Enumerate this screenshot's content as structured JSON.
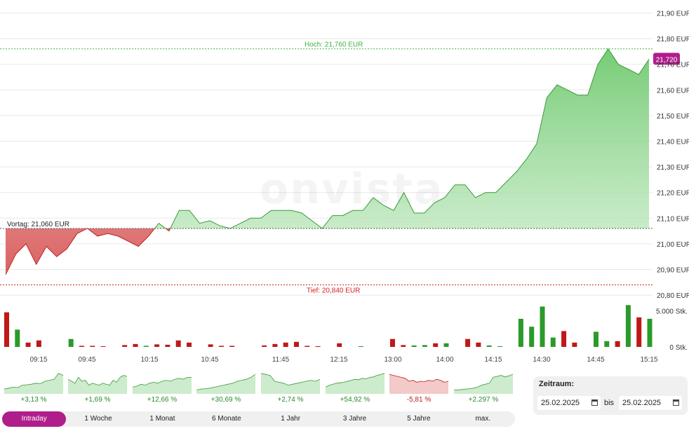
{
  "chart_data": {
    "type": "area",
    "watermark": "onvista",
    "currency_unit": "EUR",
    "y_ticks": [
      "21,90 EUR",
      "21,80 EUR",
      "21,70 EUR",
      "21,60 EUR",
      "21,50 EUR",
      "21,40 EUR",
      "21,30 EUR",
      "21,20 EUR",
      "21,10 EUR",
      "21,00 EUR",
      "20,90 EUR",
      "20,80 EUR"
    ],
    "y_tick_values": [
      21.9,
      21.8,
      21.7,
      21.6,
      21.5,
      21.4,
      21.3,
      21.2,
      21.1,
      21.0,
      20.9,
      20.8
    ],
    "ylim": [
      20.8,
      21.95
    ],
    "x_ticks": [
      "09:15",
      "09:45",
      "10:15",
      "10:45",
      "11:45",
      "12:15",
      "13:00",
      "14:00",
      "14:15",
      "14:30",
      "14:45",
      "15:15"
    ],
    "previous_close": {
      "label": "Vortag: 21,060 EUR",
      "value": 21.06
    },
    "high": {
      "label": "Hoch: 21,760 EUR",
      "value": 21.76
    },
    "low": {
      "label": "Tief: 20,840 EUR",
      "value": 20.84
    },
    "last_price_label": "21,720",
    "last_price": 21.72,
    "prices": [
      20.88,
      20.96,
      21.0,
      20.92,
      20.99,
      20.95,
      20.98,
      21.04,
      21.06,
      21.03,
      21.04,
      21.03,
      21.01,
      20.99,
      21.03,
      21.08,
      21.05,
      21.13,
      21.13,
      21.08,
      21.09,
      21.07,
      21.06,
      21.08,
      21.1,
      21.1,
      21.13,
      21.13,
      21.13,
      21.12,
      21.09,
      21.06,
      21.11,
      21.11,
      21.13,
      21.13,
      21.18,
      21.15,
      21.13,
      21.2,
      21.12,
      21.12,
      21.16,
      21.18,
      21.23,
      21.23,
      21.18,
      21.2,
      21.2,
      21.24,
      21.28,
      21.33,
      21.39,
      21.57,
      21.62,
      21.6,
      21.58,
      21.58,
      21.7,
      21.76,
      21.7,
      21.68,
      21.66,
      21.72
    ],
    "volume_ticks": [
      "5.000 Stk.",
      "0 Stk."
    ],
    "volume_tick_values": [
      5000,
      0
    ],
    "volume_max": 7000,
    "volume_colors": {
      "up": "#2a9a2a",
      "down": "#c01818"
    },
    "volume": [
      {
        "x": 9.5,
        "v": 4800,
        "up": false
      },
      {
        "x": 24.8,
        "v": 2400,
        "up": true
      },
      {
        "x": 40.1,
        "v": 600,
        "up": false
      },
      {
        "x": 55.4,
        "v": 900,
        "up": false
      },
      {
        "x": 101.2,
        "v": 1100,
        "up": true
      },
      {
        "x": 116.5,
        "v": 150,
        "up": false
      },
      {
        "x": 131.8,
        "v": 150,
        "up": false
      },
      {
        "x": 147.1,
        "v": 100,
        "up": false
      },
      {
        "x": 177.7,
        "v": 250,
        "up": false
      },
      {
        "x": 193.0,
        "v": 400,
        "up": false
      },
      {
        "x": 208.3,
        "v": 150,
        "up": true
      },
      {
        "x": 223.6,
        "v": 350,
        "up": false
      },
      {
        "x": 238.9,
        "v": 300,
        "up": false
      },
      {
        "x": 254.2,
        "v": 900,
        "up": false
      },
      {
        "x": 269.5,
        "v": 600,
        "up": false
      },
      {
        "x": 300.1,
        "v": 350,
        "up": false
      },
      {
        "x": 315.4,
        "v": 150,
        "up": false
      },
      {
        "x": 330.7,
        "v": 150,
        "up": false
      },
      {
        "x": 376.6,
        "v": 200,
        "up": false
      },
      {
        "x": 391.9,
        "v": 400,
        "up": false
      },
      {
        "x": 407.2,
        "v": 600,
        "up": false
      },
      {
        "x": 422.5,
        "v": 700,
        "up": false
      },
      {
        "x": 437.8,
        "v": 150,
        "up": false
      },
      {
        "x": 453.1,
        "v": 100,
        "up": false
      },
      {
        "x": 483.7,
        "v": 500,
        "up": false
      },
      {
        "x": 514.3,
        "v": 100,
        "up": true
      },
      {
        "x": 559.5,
        "v": 1100,
        "up": false
      },
      {
        "x": 574.8,
        "v": 250,
        "up": false
      },
      {
        "x": 590.1,
        "v": 200,
        "up": true
      },
      {
        "x": 605.4,
        "v": 250,
        "up": true
      },
      {
        "x": 620.7,
        "v": 500,
        "up": false
      },
      {
        "x": 636.0,
        "v": 500,
        "up": true
      },
      {
        "x": 666.6,
        "v": 1100,
        "up": false
      },
      {
        "x": 681.9,
        "v": 600,
        "up": false
      },
      {
        "x": 697.2,
        "v": 200,
        "up": true
      },
      {
        "x": 712.5,
        "v": 100,
        "up": true
      },
      {
        "x": 742.4,
        "v": 3900,
        "up": true
      },
      {
        "x": 757.7,
        "v": 2800,
        "up": true
      },
      {
        "x": 773.0,
        "v": 5600,
        "up": true
      },
      {
        "x": 788.3,
        "v": 1300,
        "up": true
      },
      {
        "x": 803.6,
        "v": 2200,
        "up": false
      },
      {
        "x": 818.9,
        "v": 600,
        "up": false
      },
      {
        "x": 849.5,
        "v": 2100,
        "up": true
      },
      {
        "x": 864.8,
        "v": 800,
        "up": true
      },
      {
        "x": 880.1,
        "v": 800,
        "up": false
      },
      {
        "x": 895.4,
        "v": 5800,
        "up": true
      },
      {
        "x": 910.7,
        "v": 4100,
        "up": false
      },
      {
        "x": 926.0,
        "v": 3900,
        "up": true
      }
    ]
  },
  "performance": [
    {
      "label": "+3,13 %",
      "up": true,
      "series": [
        0.1,
        0.15,
        0.2,
        0.18,
        0.3,
        0.32,
        0.35,
        0.4,
        0.38,
        0.5,
        0.55,
        0.6,
        0.9,
        0.8
      ]
    },
    {
      "label": "+1,69 %",
      "up": true,
      "series": [
        0.6,
        0.5,
        0.4,
        0.7,
        0.5,
        0.55,
        0.3,
        0.4,
        0.35,
        0.3,
        0.4,
        0.35,
        0.3,
        0.55,
        0.45,
        0.7,
        0.8,
        0.75
      ]
    },
    {
      "label": "+12,66 %",
      "up": true,
      "series": [
        0.2,
        0.25,
        0.35,
        0.3,
        0.4,
        0.45,
        0.4,
        0.5,
        0.55,
        0.5,
        0.6,
        0.65,
        0.6,
        0.7,
        0.7
      ]
    },
    {
      "label": "+30,69 %",
      "up": true,
      "series": [
        0.05,
        0.1,
        0.12,
        0.15,
        0.2,
        0.25,
        0.3,
        0.35,
        0.4,
        0.5,
        0.55,
        0.6,
        0.7,
        0.85
      ]
    },
    {
      "label": "+2,74 %",
      "up": true,
      "series": [
        0.9,
        0.85,
        0.8,
        0.5,
        0.45,
        0.4,
        0.3,
        0.35,
        0.4,
        0.45,
        0.5,
        0.55,
        0.5,
        0.6
      ]
    },
    {
      "label": "+54,92 %",
      "up": true,
      "series": [
        0.2,
        0.3,
        0.35,
        0.4,
        0.42,
        0.45,
        0.5,
        0.55,
        0.6,
        0.58,
        0.65,
        0.62,
        0.7,
        0.72,
        0.8,
        0.85,
        0.9
      ]
    },
    {
      "label": "-5,81 %",
      "up": false,
      "series": [
        0.85,
        0.8,
        0.75,
        0.7,
        0.65,
        0.5,
        0.55,
        0.45,
        0.5,
        0.48,
        0.55,
        0.5,
        0.6,
        0.55,
        0.45,
        0.5
      ]
    },
    {
      "label": "+2.297 %",
      "up": true,
      "series": [
        0.05,
        0.06,
        0.08,
        0.1,
        0.12,
        0.15,
        0.2,
        0.3,
        0.35,
        0.4,
        0.7,
        0.75,
        0.8,
        0.72,
        0.78,
        0.85
      ]
    }
  ],
  "periods": [
    "Intraday",
    "1 Woche",
    "1 Monat",
    "6 Monate",
    "1 Jahr",
    "3 Jahre",
    "5 Jahre",
    "max."
  ],
  "active_period": "Intraday",
  "zeitraum": {
    "label": "Zeitraum:",
    "from": "25.02.2025",
    "separator": "bis",
    "to": "25.02.2025"
  },
  "colors": {
    "accent": "#b01e8c",
    "positive": "#2a8a2a",
    "negative": "#c01818",
    "high_line": "#3cb43c",
    "low_line": "#d02020",
    "prev_line": "#555555"
  }
}
